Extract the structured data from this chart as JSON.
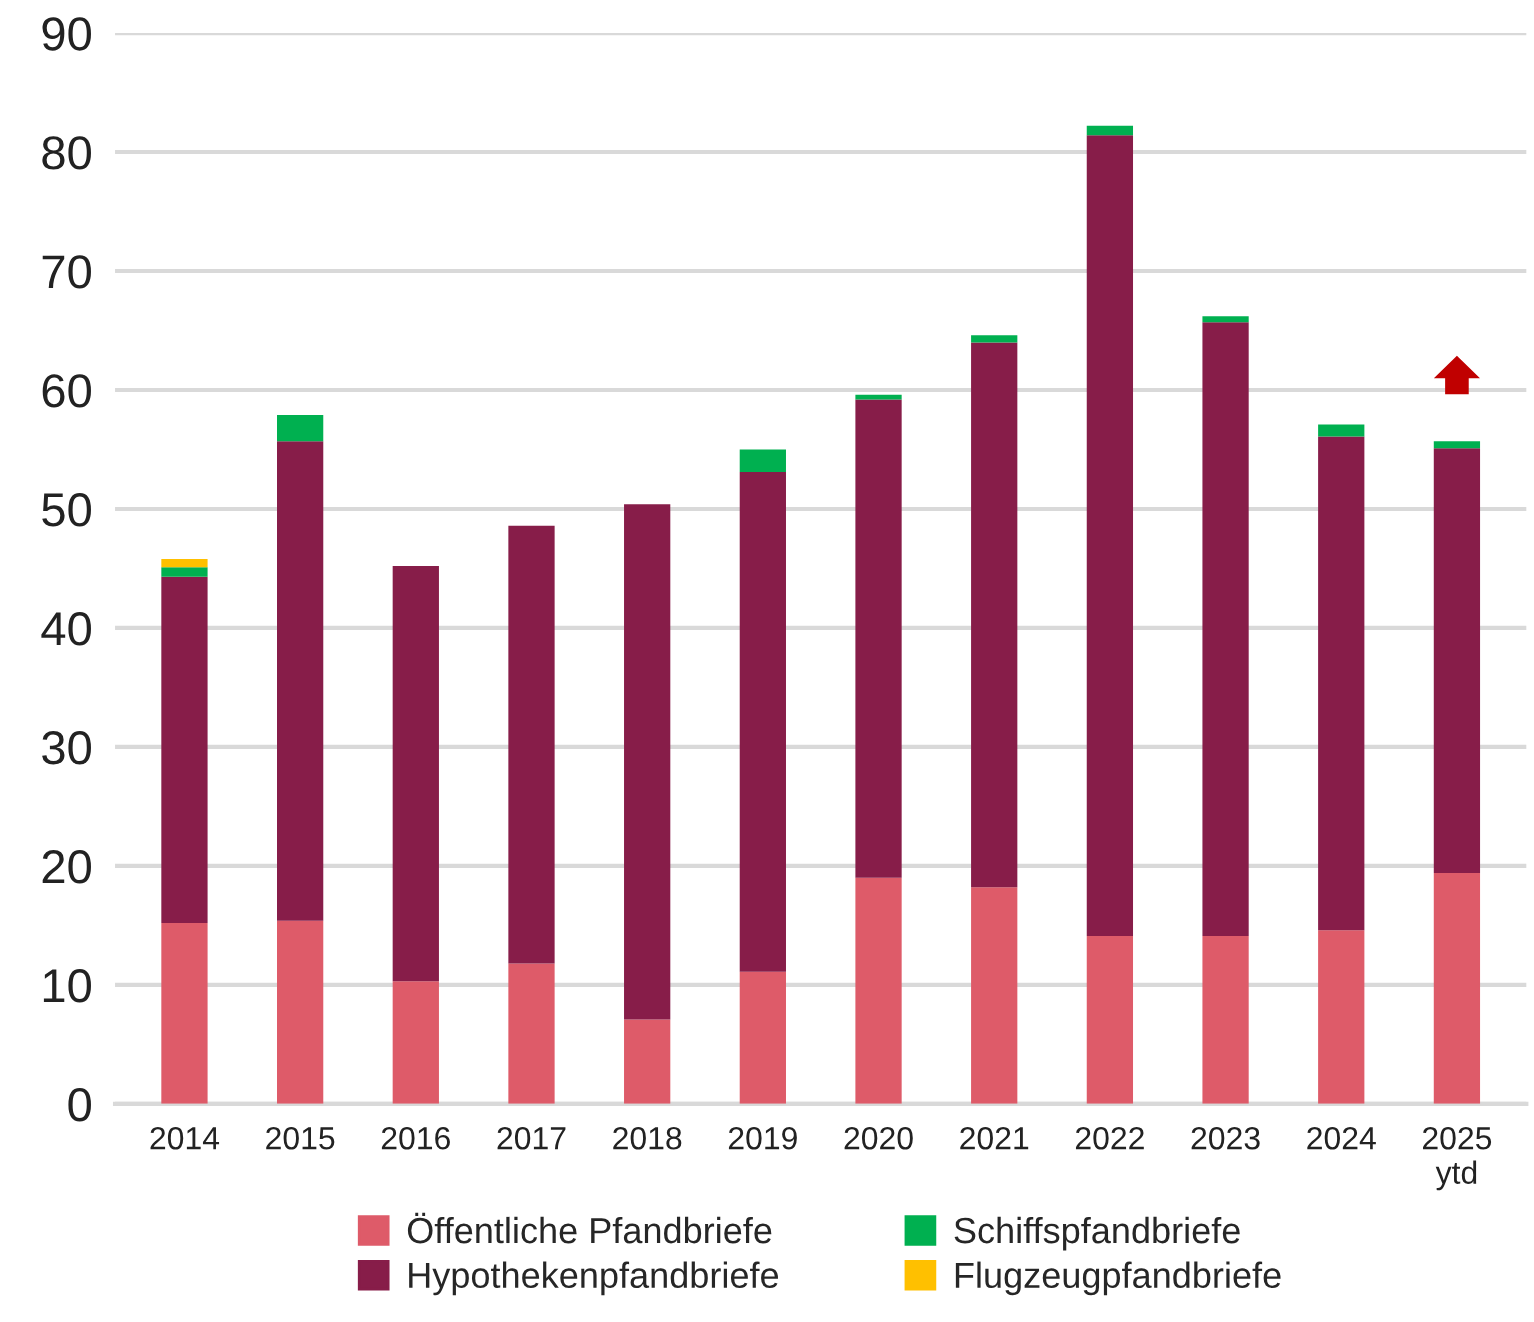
{
  "chart_data": {
    "type": "bar",
    "stacked": true,
    "categories": [
      "2014",
      "2015",
      "2016",
      "2017",
      "2018",
      "2019",
      "2020",
      "2021",
      "2022",
      "2023",
      "2024",
      "2025\nytd"
    ],
    "series": [
      {
        "name": "Öffentliche Pfandbriefe",
        "color": "#de5b69",
        "values": [
          15.2,
          15.4,
          10.3,
          11.8,
          7.1,
          11.1,
          19.0,
          18.2,
          14.1,
          14.1,
          14.6,
          19.4
        ]
      },
      {
        "name": "Hypothekenpfandbriefe",
        "color": "#871d49",
        "values": [
          29.1,
          40.3,
          34.9,
          36.8,
          43.3,
          42.0,
          40.2,
          45.8,
          67.3,
          51.6,
          41.5,
          35.7
        ]
      },
      {
        "name": "Schiffspfandbriefe",
        "color": "#00b050",
        "values": [
          0.8,
          2.2,
          null,
          null,
          null,
          1.9,
          0.4,
          0.6,
          0.8,
          0.5,
          1.0,
          0.6
        ]
      },
      {
        "name": "Flugzeugpfandbriefe",
        "color": "#ffc000",
        "values": [
          0.7,
          null,
          null,
          null,
          null,
          null,
          null,
          null,
          null,
          null,
          null,
          null
        ]
      }
    ],
    "ylim": [
      0,
      90
    ],
    "yticks": [
      0,
      10,
      20,
      30,
      40,
      50,
      60,
      70,
      80,
      90
    ],
    "grid": "y",
    "legend": "bottom"
  }
}
